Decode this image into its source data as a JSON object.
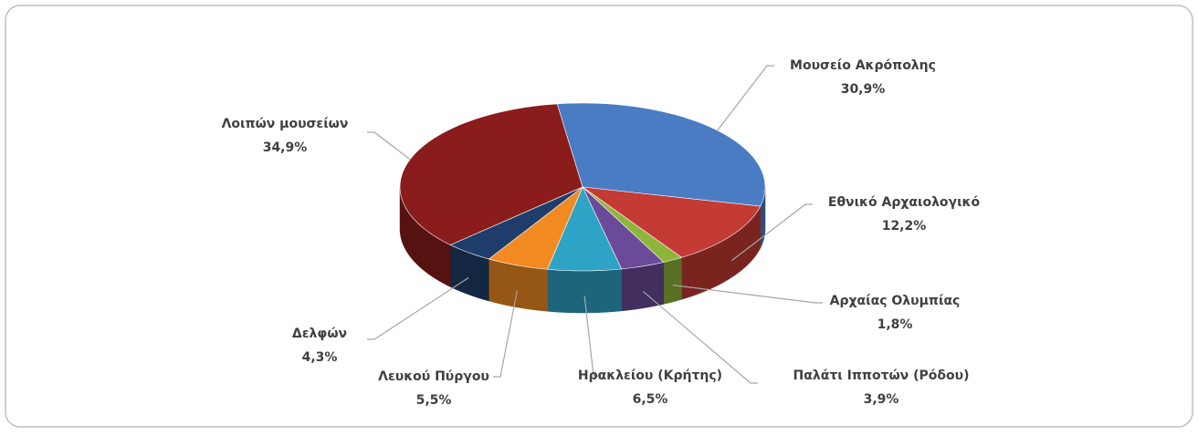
{
  "chart_data": {
    "type": "pie3d",
    "categories": [
      "Μουσείο Ακρόπολης",
      "Εθνικό Αρχαιολογικό",
      "Αρχαίας Ολυμπίας",
      "Παλάτι Ιπποτών (Ρόδου)",
      "Ηρακλείου (Κρήτης)",
      "Λευκού Πύργου",
      "Δελφών",
      "Λοιπών μουσείων"
    ],
    "values": [
      30.9,
      12.2,
      1.8,
      3.9,
      6.5,
      5.5,
      4.3,
      34.9
    ],
    "value_labels": [
      "30,9%",
      "12,2%",
      "1,8%",
      "3,9%",
      "6,5%",
      "5,5%",
      "4,3%",
      "34,9%"
    ],
    "colors": [
      "#4a7cc4",
      "#c43a34",
      "#8fb43c",
      "#6b4a9a",
      "#2fa3c6",
      "#f28a22",
      "#1e3d6b",
      "#8a1c1c"
    ]
  }
}
